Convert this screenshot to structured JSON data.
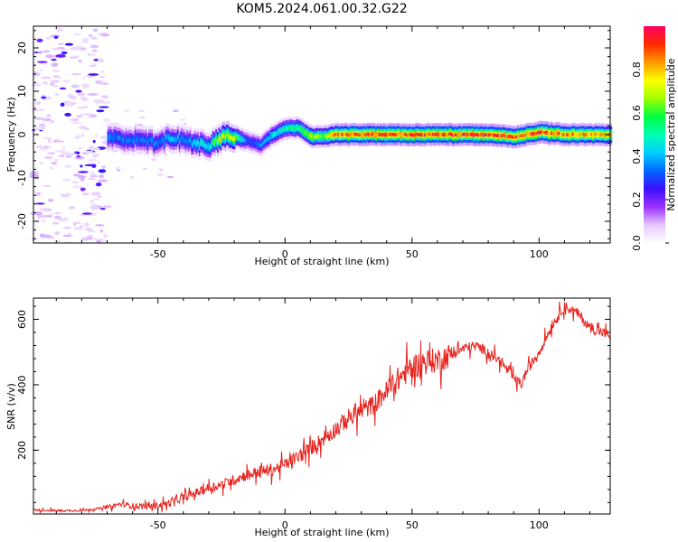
{
  "title": "KOM5.2024.061.00.32.G22",
  "chart_data": [
    {
      "type": "heatmap",
      "xlabel": "Height of straight line (km)",
      "ylabel": "Frequency (Hz)",
      "xlim": [
        -99,
        128
      ],
      "ylim": [
        -25,
        25
      ],
      "xticks": [
        {
          "value": -50,
          "label": "-50"
        },
        {
          "value": 0,
          "label": "0"
        },
        {
          "value": 50,
          "label": "50"
        },
        {
          "value": 100,
          "label": "100"
        }
      ],
      "yticks": [
        {
          "value": 20,
          "label": "20"
        },
        {
          "value": 10,
          "label": "10"
        },
        {
          "value": 0,
          "label": "0"
        },
        {
          "value": -10,
          "label": "-10"
        },
        {
          "value": -20,
          "label": "-20"
        }
      ],
      "colorbar": {
        "label": "Normalized spectral amplitude",
        "range": [
          0,
          1
        ],
        "ticks": [
          {
            "value": 0.0,
            "label": "0.0"
          },
          {
            "value": 0.2,
            "label": "0.2"
          },
          {
            "value": 0.4,
            "label": "0.4"
          },
          {
            "value": 0.6,
            "label": "0.6"
          },
          {
            "value": 0.8,
            "label": "0.8"
          }
        ],
        "colormap": [
          "#ffffff",
          "#e6c8ff",
          "#9a30ff",
          "#3a10ff",
          "#0066ff",
          "#00d0ff",
          "#00ffb0",
          "#00ff40",
          "#a0ff00",
          "#ffff00",
          "#ff9900",
          "#ff2a00",
          "#ff0060"
        ]
      },
      "ridge": {
        "x": [
          -70,
          -60,
          -50,
          -45,
          -40,
          -35,
          -30,
          -25,
          -20,
          -15,
          -10,
          -5,
          0,
          5,
          10,
          15,
          20,
          40,
          60,
          80,
          90,
          100,
          110,
          128
        ],
        "y": [
          -1,
          -1,
          -2,
          -0.5,
          -1.5,
          -2,
          -2.5,
          -0.5,
          -0.5,
          -1.5,
          -2.5,
          0,
          1.5,
          1.5,
          -0.5,
          -0.5,
          0,
          0,
          0,
          0,
          -0.5,
          0.5,
          0,
          0
        ],
        "amplitude": [
          0.35,
          0.35,
          0.35,
          0.4,
          0.35,
          0.45,
          0.45,
          0.75,
          0.65,
          0.3,
          0.35,
          0.45,
          0.5,
          0.55,
          0.7,
          0.65,
          0.85,
          0.9,
          0.9,
          0.9,
          0.85,
          0.9,
          0.85,
          0.8
        ]
      },
      "noise_region_x": [
        -99,
        -70
      ]
    },
    {
      "type": "line",
      "xlabel": "Height of straight line (km)",
      "ylabel": "SNR (v/v)",
      "xlim": [
        -99,
        128
      ],
      "ylim": [
        5,
        665
      ],
      "xticks": [
        {
          "value": -50,
          "label": "-50"
        },
        {
          "value": 0,
          "label": "0"
        },
        {
          "value": 50,
          "label": "50"
        },
        {
          "value": 100,
          "label": "100"
        }
      ],
      "yticks": [
        {
          "value": 200,
          "label": "200"
        },
        {
          "value": 400,
          "label": "400"
        },
        {
          "value": 600,
          "label": "600"
        }
      ],
      "series": [
        {
          "color": "#e8231e",
          "x": [
            -99,
            -90,
            -80,
            -75,
            -70,
            -65,
            -60,
            -55,
            -50,
            -45,
            -40,
            -35,
            -30,
            -25,
            -20,
            -15,
            -10,
            -5,
            0,
            5,
            10,
            15,
            20,
            25,
            30,
            35,
            40,
            45,
            50,
            55,
            60,
            65,
            70,
            75,
            80,
            85,
            90,
            93,
            95,
            100,
            105,
            110,
            115,
            120,
            128
          ],
          "y": [
            18,
            15,
            16,
            20,
            25,
            35,
            30,
            28,
            30,
            40,
            55,
            70,
            85,
            95,
            110,
            125,
            135,
            140,
            155,
            180,
            205,
            235,
            265,
            300,
            320,
            340,
            380,
            420,
            455,
            470,
            475,
            490,
            510,
            520,
            500,
            470,
            420,
            400,
            440,
            500,
            580,
            640,
            620,
            575,
            550
          ]
        }
      ]
    }
  ]
}
